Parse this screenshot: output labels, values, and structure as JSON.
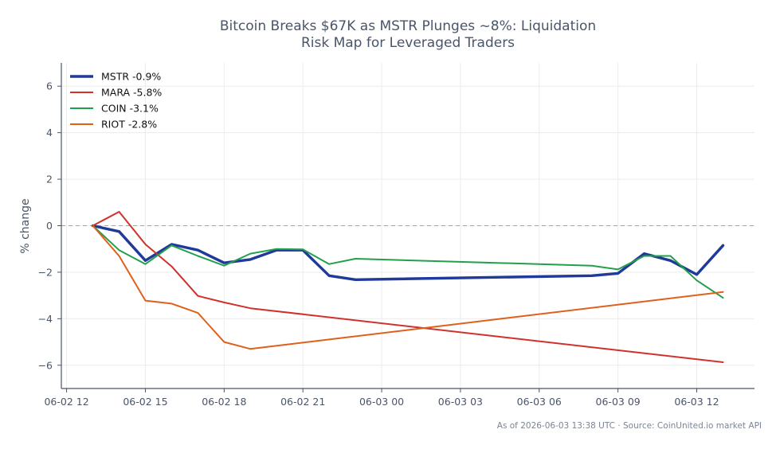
{
  "chart_data": {
    "type": "line",
    "title": "Bitcoin Breaks $67K as MSTR Plunges ~8%: Liquidation\nRisk Map for Leveraged Traders",
    "xlabel": "",
    "ylabel": "% change",
    "ylim": [
      -7,
      7
    ],
    "xlim_hours": [
      -0.2,
      26.2
    ],
    "y_ticks": [
      -6,
      -4,
      -2,
      0,
      2,
      4,
      6
    ],
    "x_ticks": [
      {
        "h": 0,
        "label": "06-02 12"
      },
      {
        "h": 3,
        "label": "06-02 15"
      },
      {
        "h": 6,
        "label": "06-02 18"
      },
      {
        "h": 9,
        "label": "06-02 21"
      },
      {
        "h": 12,
        "label": "06-03 00"
      },
      {
        "h": 15,
        "label": "06-03 03"
      },
      {
        "h": 18,
        "label": "06-03 06"
      },
      {
        "h": 21,
        "label": "06-03 09"
      },
      {
        "h": 24,
        "label": "06-03 12"
      }
    ],
    "baseline": 0,
    "grid": true,
    "legend": "top-left",
    "series": [
      {
        "name": "MSTR -0.9%",
        "color": "#1f3a9a",
        "points": [
          [
            1,
            0
          ],
          [
            2,
            -0.25
          ],
          [
            3,
            -1.5
          ],
          [
            4,
            -0.8
          ],
          [
            5,
            -1.05
          ],
          [
            6,
            -1.6
          ],
          [
            7,
            -1.45
          ],
          [
            8,
            -1.05
          ],
          [
            9,
            -1.05
          ],
          [
            10,
            -2.15
          ],
          [
            11,
            -2.32
          ],
          [
            20,
            -2.15
          ],
          [
            21,
            -2.05
          ],
          [
            22,
            -1.2
          ],
          [
            23,
            -1.5
          ],
          [
            24,
            -2.1
          ],
          [
            25,
            -0.85
          ]
        ]
      },
      {
        "name": "MARA -5.8%",
        "color": "#d0312d",
        "points": [
          [
            1,
            0
          ],
          [
            2,
            0.6
          ],
          [
            3,
            -0.8
          ],
          [
            4,
            -1.75
          ],
          [
            5,
            -3.02
          ],
          [
            6,
            -3.3
          ],
          [
            7,
            -3.55
          ],
          [
            25,
            -5.87
          ]
        ]
      },
      {
        "name": "COIN -3.1%",
        "color": "#22a04b",
        "points": [
          [
            1,
            0
          ],
          [
            2,
            -1.05
          ],
          [
            3,
            -1.65
          ],
          [
            4,
            -0.85
          ],
          [
            5,
            -1.3
          ],
          [
            6,
            -1.72
          ],
          [
            7,
            -1.2
          ],
          [
            8,
            -1.0
          ],
          [
            9,
            -1.02
          ],
          [
            10,
            -1.65
          ],
          [
            11,
            -1.42
          ],
          [
            20,
            -1.72
          ],
          [
            21,
            -1.88
          ],
          [
            22,
            -1.3
          ],
          [
            23,
            -1.3
          ],
          [
            24,
            -2.35
          ],
          [
            25,
            -3.1
          ]
        ]
      },
      {
        "name": "RIOT -2.8%",
        "color": "#e0601b",
        "points": [
          [
            1,
            0
          ],
          [
            2,
            -1.3
          ],
          [
            3,
            -3.22
          ],
          [
            4,
            -3.35
          ],
          [
            5,
            -3.75
          ],
          [
            6,
            -5.0
          ],
          [
            7,
            -5.3
          ],
          [
            25,
            -2.85
          ]
        ]
      }
    ]
  },
  "footer": {
    "source": "As of 2026-06-03 13:38 UTC · Source: CoinUnited.io market API"
  }
}
